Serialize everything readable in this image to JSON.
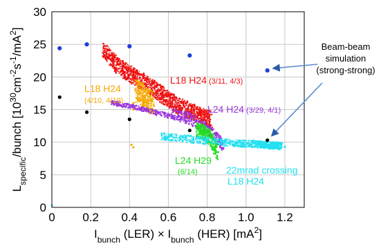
{
  "chart_data": {
    "type": "scatter",
    "xlim": [
      0,
      1.3
    ],
    "ylim": [
      0,
      30
    ],
    "xticks": [
      "0",
      "0.2",
      "0.4",
      "0.6",
      "0.8",
      "1.0",
      "1.2"
    ],
    "yticks": [
      "0",
      "5",
      "10",
      "15",
      "20",
      "25",
      "30"
    ],
    "xlabel": {
      "parts": [
        {
          "t": "I",
          "s": "n"
        },
        {
          "t": "bunch",
          "s": "sub"
        },
        {
          "t": " (LER) × I",
          "s": "n"
        },
        {
          "t": "bunch",
          "s": "sub"
        },
        {
          "t": " (HER) [mA",
          "s": "n"
        },
        {
          "t": "2",
          "s": "sup"
        },
        {
          "t": "]",
          "s": "n"
        }
      ]
    },
    "ylabel": {
      "parts": [
        {
          "t": "L",
          "s": "n"
        },
        {
          "t": "specific",
          "s": "sub"
        },
        {
          "t": "/bunch [10",
          "s": "n"
        },
        {
          "t": "30",
          "s": "sup"
        },
        {
          "t": "cm",
          "s": "n"
        },
        {
          "t": "-2",
          "s": "sup"
        },
        {
          "t": "s",
          "s": "n"
        },
        {
          "t": "-1",
          "s": "sup"
        },
        {
          "t": "/mA",
          "s": "n"
        },
        {
          "t": "2",
          "s": "sup"
        },
        {
          "t": "]",
          "s": "n"
        }
      ]
    },
    "colors": {
      "red": "#ee1111",
      "orange": "#f7a800",
      "purple": "#9933dd",
      "green": "#22dd22",
      "cyan": "#22e0f0",
      "blue": "#1f3fd6",
      "black": "#000000",
      "grid": "#c8c8c8"
    },
    "series": [
      {
        "name": "L18 H24 (3/11, 4/3)",
        "color": "#ee1111",
        "bands": [
          {
            "x": [
              0.26,
              0.33,
              0.4,
              0.46,
              0.52,
              0.58,
              0.64,
              0.7,
              0.76,
              0.82
            ],
            "y": [
              24.5,
              22.0,
              20.5,
              19.5,
              18.3,
              17.0,
              15.8,
              15.0,
              14.2,
              13.5
            ],
            "spread": 1.3,
            "count": 1500
          }
        ]
      },
      {
        "name": "L18 H24 (4/10, 4/19)",
        "color": "#f7a800",
        "bands": [
          {
            "x": [
              0.43,
              0.46,
              0.49,
              0.52
            ],
            "y": [
              18.0,
              17.3,
              16.6,
              16.0
            ],
            "spread": 1.8,
            "count": 380
          }
        ]
      },
      {
        "name": "L24 H24 (3/29, 4/1)",
        "color": "#9933dd",
        "bands": [
          {
            "x": [
              0.3,
              0.38,
              0.46,
              0.54,
              0.62
            ],
            "y": [
              16.2,
              15.7,
              15.2,
              14.6,
              14.0
            ],
            "spread": 0.35,
            "count": 260
          },
          {
            "x": [
              0.62,
              0.7,
              0.78,
              0.84,
              0.88
            ],
            "y": [
              14.4,
              13.8,
              12.5,
              11.0,
              9.5
            ],
            "spread": 0.9,
            "count": 420
          }
        ]
      },
      {
        "name": "L24 H29 (6/14)",
        "color": "#22dd22",
        "bands": [
          {
            "x": [
              0.74,
              0.78,
              0.82,
              0.85
            ],
            "y": [
              12.0,
              11.6,
              10.5,
              8.5
            ],
            "spread": 1.2,
            "count": 360
          }
        ]
      },
      {
        "name": "22mrad crossing L18 H24",
        "color": "#22e0f0",
        "bands": [
          {
            "x": [
              0.56,
              0.7,
              0.84,
              0.96,
              1.06,
              1.1,
              1.14,
              1.18
            ],
            "y": [
              11.0,
              10.6,
              10.2,
              9.9,
              9.8,
              9.7,
              9.6,
              9.5
            ],
            "spread": 0.55,
            "count": 900
          }
        ]
      }
    ],
    "extra_points": [
      {
        "x": 0.42,
        "y": 16.0,
        "color": "#f7a800"
      },
      {
        "x": 0.42,
        "y": 15.0,
        "color": "#f7a800"
      },
      {
        "x": 0.41,
        "y": 9.6,
        "color": "#f7a800"
      },
      {
        "x": 0.42,
        "y": 9.2,
        "color": "#f7a800"
      },
      {
        "x": 0.0,
        "y": 0.3,
        "color": "#22e0f0"
      },
      {
        "x": 1.2,
        "y": 9.3,
        "color": "#22e0f0"
      }
    ],
    "simulation_points": {
      "name": "Beam-beam simulation (strong-strong)",
      "color": "#1f3fd6",
      "x": [
        0.04,
        0.18,
        0.4,
        0.71,
        1.11
      ],
      "y": [
        24.4,
        25.0,
        24.7,
        23.3,
        21.0
      ]
    },
    "black_points": {
      "color": "#000000",
      "x": [
        0.04,
        0.18,
        0.4,
        0.71,
        1.11
      ],
      "y": [
        16.9,
        14.6,
        13.5,
        11.8,
        10.3
      ]
    },
    "annotations": {
      "simulation": [
        "Beam-beam",
        "simulation",
        "(strong-strong)"
      ],
      "l18h24_red": {
        "main": "L18 H24",
        "dates": " (3/11, 4/3)"
      },
      "l18h24_orange": {
        "main": "L18 H24",
        "dates": "(4/10, 4/19)"
      },
      "l24h24": {
        "main": "L24 H24",
        "dates": " (3/29, 4/1)"
      },
      "l24h29": {
        "main": "L24 H29",
        "dates": "(6/14)"
      },
      "crossing": [
        "22mrad crossing",
        "L18 H24"
      ]
    }
  }
}
